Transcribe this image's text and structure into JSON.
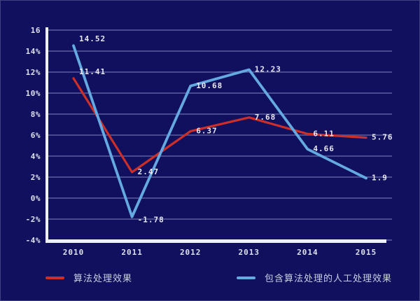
{
  "chart_data": {
    "type": "line",
    "categories": [
      "2010",
      "2011",
      "2012",
      "2013",
      "2014",
      "2015"
    ],
    "series": [
      {
        "name": "算法处理效果",
        "color": "#cb2f27",
        "values": [
          11.41,
          2.47,
          6.37,
          7.68,
          6.11,
          5.76
        ]
      },
      {
        "name": "包含算法处理的人工处理效果",
        "color": "#64a9e2",
        "values": [
          14.52,
          -1.78,
          10.68,
          12.23,
          4.66,
          1.9
        ]
      }
    ],
    "title": "",
    "xlabel": "",
    "ylabel": "",
    "ylim": [
      -4,
      16
    ],
    "ytick_step": 2,
    "ytick_labels": [
      "16",
      "14%",
      "12%",
      "10%",
      "8%",
      "6%",
      "4%",
      "2%",
      "0%",
      "-2%",
      "-4%"
    ],
    "grid": "horizontal",
    "legend_position": "bottom",
    "colors": {
      "background": "#10105e",
      "axis": "#eef0f8",
      "gridline": "rgba(190,198,240,0.33)",
      "data_label": "#e9e9f6",
      "tick_label": "#dfe1f0",
      "legend_text": "#c8cde6"
    }
  }
}
